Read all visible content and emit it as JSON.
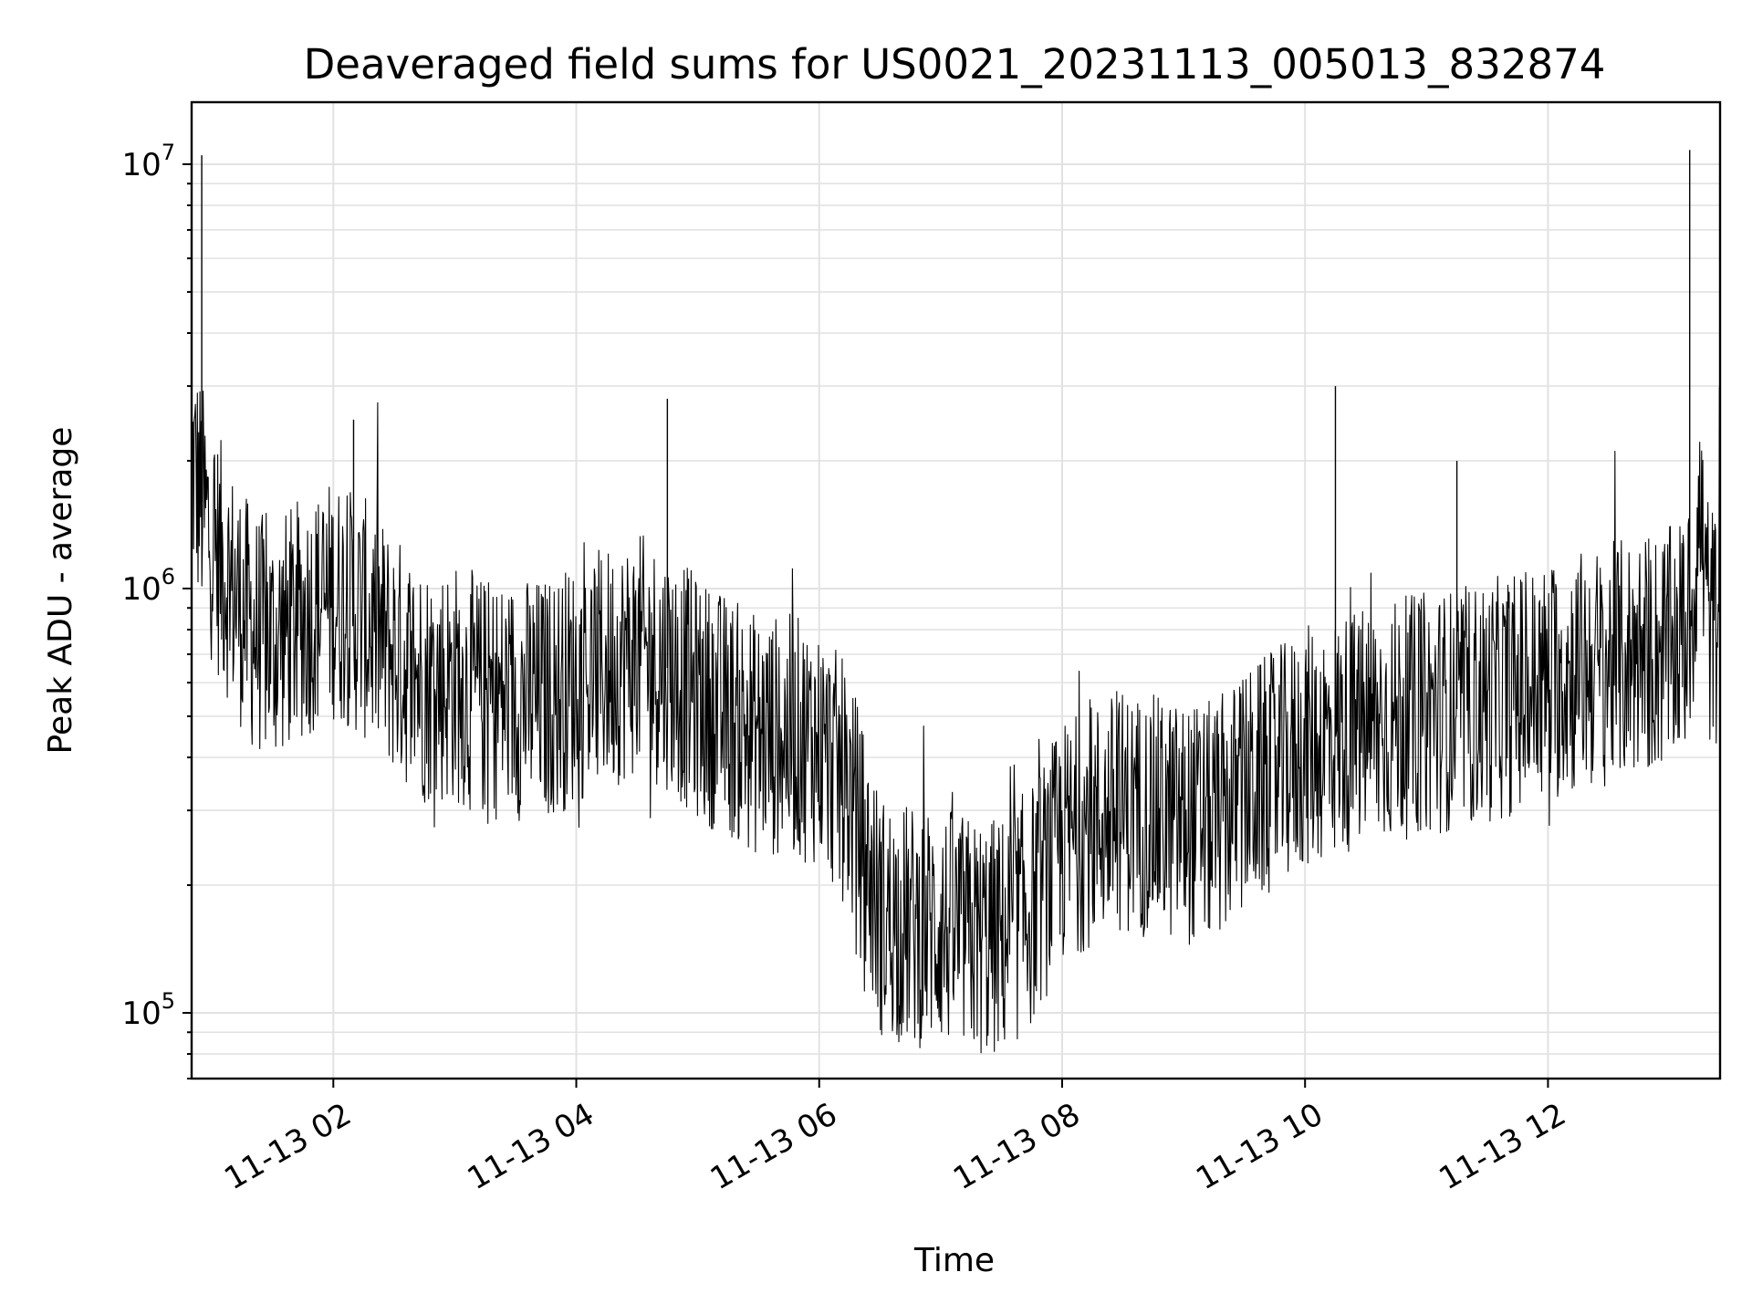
{
  "chart_data": {
    "type": "line",
    "title": "Deaveraged field sums for US0021_20231113_005013_832874",
    "xlabel": "Time",
    "ylabel": "Peak ADU - average",
    "yscale": "log",
    "x_start": "2023-11-13 00:50",
    "x_end": "2023-11-13 13:25",
    "ylim": [
      70000,
      14000000
    ],
    "x_ticks": [
      "11-13 02",
      "11-13 04",
      "11-13 06",
      "11-13 08",
      "11-13 10",
      "11-13 12"
    ],
    "y_ticks": [
      {
        "base": "10",
        "exp": "5"
      },
      {
        "base": "10",
        "exp": "6"
      },
      {
        "base": "10",
        "exp": "7"
      }
    ],
    "grid": true,
    "line_color": "#000000",
    "series": [
      {
        "x": [
          "00:50",
          "00:55",
          "01:00",
          "01:10",
          "01:20",
          "01:30",
          "01:45",
          "02:00",
          "02:15",
          "02:30",
          "02:45",
          "03:00",
          "03:15",
          "03:30",
          "03:45",
          "04:00",
          "04:15",
          "04:30",
          "04:45",
          "05:00",
          "05:15",
          "05:30",
          "05:45",
          "06:00",
          "06:15",
          "06:30",
          "06:45",
          "07:00",
          "07:15",
          "07:30",
          "07:45",
          "08:00",
          "08:15",
          "08:30",
          "08:45",
          "09:00",
          "09:15",
          "09:30",
          "09:45",
          "10:00",
          "10:15",
          "10:30",
          "10:45",
          "11:00",
          "11:15",
          "11:30",
          "11:45",
          "12:00",
          "12:15",
          "12:30",
          "12:45",
          "13:00",
          "13:10",
          "13:15",
          "13:20",
          "13:25"
        ],
        "values": [
          2000000,
          1600000,
          1300000,
          1000000,
          800000,
          750000,
          850000,
          950000,
          850000,
          700000,
          600000,
          600000,
          550000,
          550000,
          550000,
          600000,
          650000,
          700000,
          650000,
          550000,
          500000,
          450000,
          450000,
          430000,
          330000,
          170000,
          160000,
          160000,
          150000,
          150000,
          180000,
          250000,
          280000,
          300000,
          290000,
          280000,
          280000,
          330000,
          370000,
          420000,
          450000,
          470000,
          490000,
          510000,
          520000,
          540000,
          570000,
          600000,
          640000,
          660000,
          700000,
          720000,
          800000,
          1500000,
          800000,
          850000
        ]
      }
    ],
    "spikes": [
      {
        "x": "00:55",
        "y": 10500000
      },
      {
        "x": "02:10",
        "y": 2500000
      },
      {
        "x": "04:45",
        "y": 2800000
      },
      {
        "x": "10:15",
        "y": 3000000
      },
      {
        "x": "11:15",
        "y": 2000000
      },
      {
        "x": "13:10",
        "y": 10800000
      }
    ]
  }
}
